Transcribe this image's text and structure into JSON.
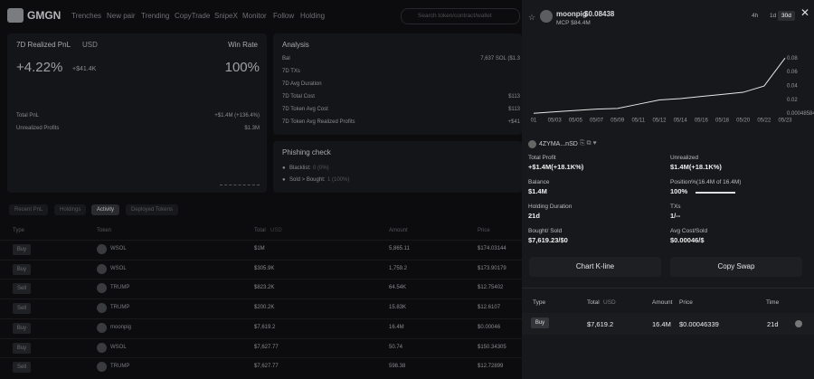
{
  "nav": {
    "logo": "GMGN",
    "items": [
      "Trenches",
      "New pair",
      "Trending",
      "CopyTrade",
      "SnipeX",
      "Monitor",
      "Follow",
      "Holding"
    ],
    "search": "Search token/contract/wallet"
  },
  "pnl_card": {
    "title": "7D Realized PnL",
    "currency": "USD",
    "win_rate_label": "Win Rate",
    "pnl_pct": "+4.22%",
    "pnl_usd": "+$41.4K",
    "win_rate": "100%",
    "rows": [
      [
        "Total PnL",
        "+$1.4M (+136.4%)"
      ],
      [
        "Unrealized Profits",
        "$1.3M"
      ]
    ]
  },
  "analysis": {
    "title": "Analysis",
    "rows": [
      [
        "Bal",
        "7,637 SOL ($1.3"
      ],
      [
        "7D TXs"
      ],
      [
        "7D Avg Duration"
      ],
      [
        "7D Total Cost",
        "$113"
      ],
      [
        "7D Token Avg Cost",
        "$113"
      ],
      [
        "7D Token Avg Realized Profits",
        "+$41"
      ]
    ]
  },
  "phishing": {
    "title": "Phishing check",
    "items": [
      [
        "Blacklist:",
        "0 (0%)"
      ],
      [
        "Sold > Bought:",
        "1 (100%)"
      ]
    ]
  },
  "tabs": [
    "Recent PnL",
    "Holdings",
    "Activity",
    "Deployed Tokens"
  ],
  "activity": {
    "headers": [
      "Type",
      "Token",
      "Total",
      "USD",
      "Amount",
      "Price"
    ],
    "rows": [
      [
        "Buy",
        "WSOL",
        "$1M",
        "5,865.11",
        "$174.03144"
      ],
      [
        "Buy",
        "WSOL",
        "$305.9K",
        "1,759.2",
        "$173.90179"
      ],
      [
        "Sell",
        "TRUMP",
        "$823.2K",
        "64.54K",
        "$12.75402"
      ],
      [
        "Sell",
        "TRUMP",
        "$200.2K",
        "15.83K",
        "$12.6107"
      ],
      [
        "Buy",
        "moonpig",
        "$7,619.2",
        "16.4M",
        "$0.00046"
      ],
      [
        "Buy",
        "WSOL",
        "$7,627.77",
        "50.74",
        "$150.34305"
      ],
      [
        "Sell",
        "TRUMP",
        "$7,627.77",
        "598.38",
        "$12.72899"
      ]
    ]
  },
  "drawer": {
    "token": "moonpig",
    "price": "$0.08438",
    "mcp": "MCP $84.4M",
    "timeframes": [
      "4h",
      "1d",
      "30d"
    ],
    "wallet": "4ZYMA...nSD",
    "stats": [
      [
        "Total Profit",
        "+$1.4M(+18.1K%)"
      ],
      [
        "Unrealized",
        "$1.4M(+18.1K%)"
      ],
      [
        "Balance",
        "$1.4M"
      ],
      [
        "Position%(16.4M of 16.4M)",
        "100%"
      ],
      [
        "Holding Duration",
        "21d"
      ],
      [
        "TXs",
        "1/--"
      ],
      [
        "Bought/ Sold",
        "$7,619.23/$0"
      ],
      [
        "Avg Cost/Sold",
        "$0.00046/$"
      ]
    ],
    "buttons": [
      "Chart K-line",
      "Copy Swap"
    ],
    "trades": {
      "headers": [
        "Type",
        "Total",
        "USD",
        "Amount",
        "Price",
        "Time"
      ],
      "rows": [
        [
          "Buy",
          "$7,619.2",
          "16.4M",
          "$0.00046339",
          "21d"
        ]
      ]
    }
  },
  "chart_data": {
    "type": "line",
    "categories": [
      "01",
      "05/03",
      "05/05",
      "05/07",
      "05/09",
      "05/11",
      "05/12",
      "05/14",
      "05/16",
      "05/18",
      "05/20",
      "05/22",
      "05/23"
    ],
    "values": [
      0.001,
      0.003,
      0.005,
      0.007,
      0.008,
      0.014,
      0.02,
      0.022,
      0.025,
      0.028,
      0.031,
      0.04,
      0.08
    ],
    "color": "#e6e6e6",
    "ylim": [
      0,
      0.11
    ],
    "yticks": [
      0.00048584,
      0.02,
      0.04,
      0.06,
      0.08
    ],
    "grid": false
  }
}
